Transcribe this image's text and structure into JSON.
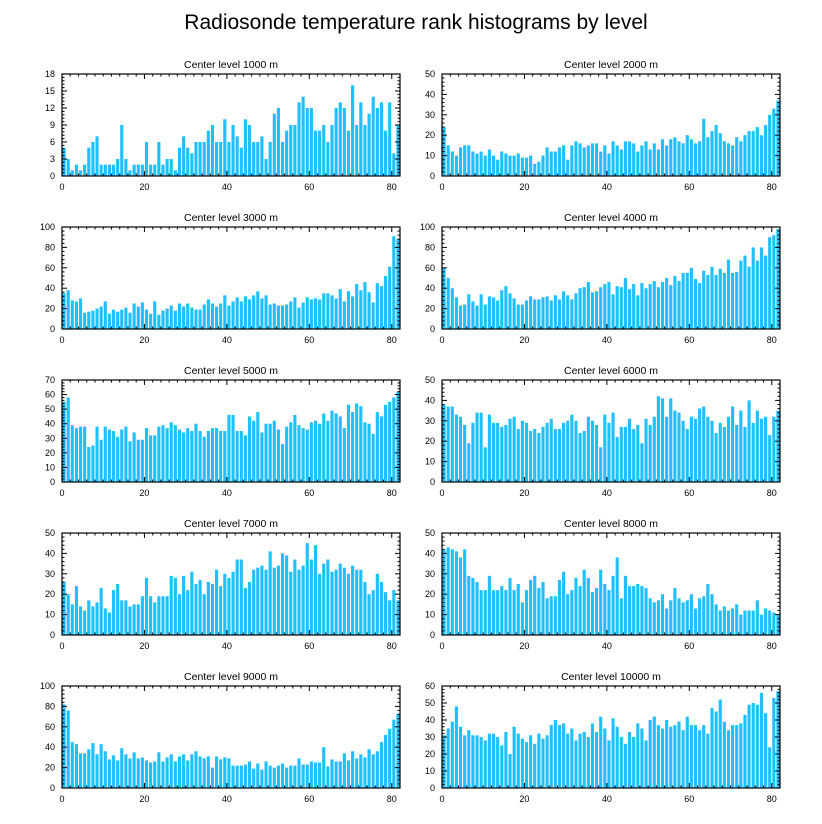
{
  "chart_data": {
    "title": "Radiosonde temperature rank histograms by level",
    "type": "bar",
    "bar_color": "#1ec0ff",
    "panels": [
      {
        "title": "Center level 1000 m",
        "xlim": [
          0,
          82
        ],
        "ylim": [
          0,
          18
        ],
        "xticks": [
          0,
          20,
          40,
          60,
          80
        ],
        "yticks": [
          0,
          3,
          6,
          9,
          12,
          15,
          18
        ],
        "values": [
          5,
          3,
          1,
          2,
          1,
          2,
          5,
          6,
          7,
          2,
          2,
          2,
          2,
          3,
          9,
          3,
          1,
          2,
          2,
          2,
          6,
          2,
          2,
          6,
          2,
          3,
          3,
          1,
          5,
          7,
          5,
          4,
          6,
          6,
          6,
          8,
          9,
          6,
          6,
          10,
          6,
          9,
          7,
          5,
          10,
          9,
          6,
          6,
          7,
          3,
          6,
          11,
          12,
          6,
          8,
          9,
          9,
          13,
          14,
          12,
          12,
          8,
          8,
          9,
          6,
          9,
          12,
          13,
          12,
          8,
          16,
          9,
          13,
          9,
          11,
          14,
          12,
          13,
          8,
          13,
          4,
          9
        ]
      },
      {
        "title": "Center level 2000 m",
        "xlim": [
          0,
          82
        ],
        "ylim": [
          0,
          50
        ],
        "xticks": [
          0,
          20,
          40,
          60,
          80
        ],
        "yticks": [
          0,
          10,
          20,
          30,
          40,
          50
        ],
        "values": [
          24,
          15,
          12,
          10,
          14,
          15,
          15,
          12,
          11,
          12,
          10,
          13,
          10,
          8,
          12,
          11,
          10,
          10,
          11,
          9,
          9,
          10,
          6,
          7,
          10,
          14,
          12,
          12,
          14,
          15,
          8,
          15,
          17,
          16,
          14,
          15,
          16,
          16,
          12,
          15,
          11,
          17,
          15,
          13,
          17,
          17,
          16,
          12,
          15,
          17,
          13,
          16,
          13,
          18,
          15,
          18,
          19,
          17,
          16,
          20,
          18,
          16,
          17,
          28,
          19,
          22,
          25,
          21,
          17,
          16,
          15,
          19,
          17,
          20,
          22,
          22,
          24,
          20,
          25,
          30,
          33,
          37
        ]
      },
      {
        "title": "Center level 3000 m",
        "xlim": [
          0,
          82
        ],
        "ylim": [
          0,
          100
        ],
        "xticks": [
          0,
          20,
          40,
          60,
          80
        ],
        "yticks": [
          0,
          20,
          40,
          60,
          80,
          100
        ],
        "values": [
          35,
          38,
          28,
          27,
          30,
          16,
          17,
          18,
          20,
          22,
          27,
          15,
          19,
          17,
          19,
          21,
          16,
          25,
          22,
          26,
          19,
          15,
          27,
          14,
          18,
          20,
          23,
          18,
          25,
          22,
          25,
          21,
          19,
          19,
          24,
          29,
          25,
          22,
          25,
          33,
          23,
          27,
          31,
          27,
          32,
          29,
          33,
          37,
          30,
          33,
          24,
          25,
          23,
          23,
          24,
          27,
          31,
          21,
          26,
          31,
          29,
          30,
          29,
          35,
          35,
          33,
          30,
          39,
          27,
          37,
          32,
          44,
          38,
          46,
          36,
          26,
          45,
          42,
          52,
          61,
          91,
          88
        ]
      },
      {
        "title": "Center level 4000 m",
        "xlim": [
          0,
          82
        ],
        "ylim": [
          0,
          100
        ],
        "xticks": [
          0,
          20,
          40,
          60,
          80
        ],
        "yticks": [
          0,
          20,
          40,
          60,
          80,
          100
        ],
        "values": [
          60,
          50,
          40,
          31,
          23,
          24,
          34,
          27,
          23,
          34,
          24,
          32,
          31,
          28,
          38,
          42,
          35,
          30,
          24,
          24,
          28,
          32,
          29,
          29,
          31,
          32,
          28,
          33,
          29,
          37,
          33,
          29,
          35,
          40,
          41,
          46,
          36,
          37,
          41,
          44,
          46,
          34,
          42,
          41,
          50,
          39,
          44,
          33,
          45,
          40,
          44,
          47,
          41,
          46,
          50,
          43,
          52,
          47,
          55,
          55,
          60,
          49,
          45,
          57,
          53,
          61,
          53,
          59,
          55,
          68,
          55,
          56,
          67,
          72,
          61,
          80,
          67,
          80,
          72,
          90,
          92,
          98
        ]
      },
      {
        "title": "Center level 5000 m",
        "xlim": [
          0,
          82
        ],
        "ylim": [
          0,
          70
        ],
        "xticks": [
          0,
          20,
          40,
          60,
          80
        ],
        "yticks": [
          0,
          10,
          20,
          30,
          40,
          50,
          60,
          70
        ],
        "values": [
          55,
          58,
          39,
          37,
          38,
          38,
          24,
          25,
          38,
          29,
          38,
          36,
          35,
          31,
          36,
          38,
          28,
          34,
          29,
          29,
          37,
          32,
          32,
          38,
          39,
          37,
          41,
          39,
          36,
          34,
          37,
          35,
          40,
          35,
          31,
          35,
          37,
          37,
          35,
          35,
          46,
          46,
          35,
          35,
          32,
          45,
          42,
          48,
          34,
          40,
          40,
          42,
          36,
          26,
          38,
          41,
          46,
          39,
          37,
          36,
          41,
          42,
          40,
          47,
          42,
          49,
          47,
          45,
          37,
          53,
          48,
          54,
          52,
          41,
          40,
          33,
          48,
          45,
          53,
          55,
          58,
          62
        ]
      },
      {
        "title": "Center level 6000 m",
        "xlim": [
          0,
          82
        ],
        "ylim": [
          0,
          50
        ],
        "xticks": [
          0,
          20,
          40,
          60,
          80
        ],
        "yticks": [
          0,
          10,
          20,
          30,
          40,
          50
        ],
        "values": [
          38,
          37,
          37,
          33,
          32,
          28,
          19,
          29,
          34,
          34,
          17,
          33,
          29,
          29,
          27,
          28,
          31,
          32,
          26,
          30,
          29,
          25,
          26,
          24,
          27,
          29,
          31,
          26,
          26,
          29,
          30,
          33,
          30,
          24,
          25,
          32,
          30,
          28,
          17,
          33,
          29,
          34,
          22,
          27,
          27,
          31,
          26,
          28,
          19,
          31,
          28,
          32,
          42,
          41,
          32,
          41,
          35,
          34,
          30,
          26,
          32,
          31,
          36,
          37,
          32,
          30,
          24,
          29,
          27,
          32,
          37,
          28,
          35,
          27,
          40,
          29,
          35,
          31,
          32,
          23,
          32,
          35
        ]
      },
      {
        "title": "Center level 7000 m",
        "xlim": [
          0,
          82
        ],
        "ylim": [
          0,
          50
        ],
        "xticks": [
          0,
          20,
          40,
          60,
          80
        ],
        "yticks": [
          0,
          10,
          20,
          30,
          40,
          50
        ],
        "values": [
          26,
          20,
          15,
          24,
          14,
          12,
          17,
          14,
          16,
          23,
          13,
          11,
          22,
          25,
          17,
          17,
          14,
          15,
          15,
          19,
          28,
          19,
          16,
          19,
          19,
          19,
          29,
          28,
          20,
          29,
          22,
          31,
          25,
          27,
          20,
          26,
          25,
          32,
          24,
          30,
          28,
          31,
          37,
          37,
          23,
          26,
          32,
          33,
          34,
          32,
          41,
          33,
          34,
          40,
          39,
          31,
          37,
          32,
          34,
          45,
          37,
          44,
          30,
          35,
          37,
          31,
          32,
          35,
          33,
          30,
          34,
          32,
          32,
          26,
          20,
          22,
          30,
          26,
          21,
          17,
          22,
          17
        ]
      },
      {
        "title": "Center level 8000 m",
        "xlim": [
          0,
          82
        ],
        "ylim": [
          0,
          50
        ],
        "xticks": [
          0,
          20,
          40,
          60,
          80
        ],
        "yticks": [
          0,
          10,
          20,
          30,
          40,
          50
        ],
        "values": [
          42,
          43,
          42,
          41,
          38,
          42,
          29,
          28,
          26,
          22,
          22,
          29,
          22,
          22,
          24,
          22,
          28,
          22,
          25,
          16,
          22,
          27,
          29,
          23,
          26,
          18,
          19,
          19,
          27,
          31,
          20,
          22,
          28,
          24,
          32,
          28,
          21,
          23,
          32,
          25,
          22,
          29,
          38,
          18,
          29,
          24,
          24,
          25,
          24,
          23,
          18,
          16,
          17,
          20,
          13,
          17,
          23,
          18,
          16,
          17,
          20,
          13,
          18,
          19,
          25,
          20,
          15,
          12,
          14,
          12,
          13,
          15,
          10,
          12,
          12,
          12,
          17,
          10,
          13,
          12,
          11,
          10
        ]
      },
      {
        "title": "Center level 9000 m",
        "xlim": [
          0,
          82
        ],
        "ylim": [
          0,
          100
        ],
        "xticks": [
          0,
          20,
          40,
          60,
          80
        ],
        "yticks": [
          0,
          20,
          40,
          60,
          80,
          100
        ],
        "values": [
          82,
          76,
          45,
          43,
          34,
          34,
          38,
          44,
          33,
          43,
          36,
          28,
          32,
          27,
          39,
          33,
          29,
          35,
          29,
          30,
          27,
          25,
          26,
          35,
          26,
          30,
          33,
          26,
          31,
          33,
          27,
          33,
          36,
          31,
          29,
          31,
          20,
          31,
          28,
          30,
          29,
          22,
          22,
          22,
          23,
          26,
          19,
          24,
          18,
          26,
          22,
          20,
          22,
          24,
          20,
          22,
          22,
          29,
          23,
          23,
          26,
          25,
          25,
          40,
          21,
          28,
          26,
          26,
          34,
          27,
          36,
          29,
          33,
          30,
          38,
          33,
          36,
          45,
          52,
          58,
          67,
          73
        ]
      },
      {
        "title": "Center level 10000 m",
        "xlim": [
          0,
          82
        ],
        "ylim": [
          0,
          60
        ],
        "xticks": [
          0,
          20,
          40,
          60,
          80
        ],
        "yticks": [
          0,
          10,
          20,
          30,
          40,
          50,
          60
        ],
        "values": [
          31,
          35,
          39,
          48,
          36,
          31,
          34,
          31,
          31,
          30,
          28,
          32,
          32,
          30,
          25,
          33,
          20,
          36,
          32,
          29,
          27,
          31,
          26,
          32,
          29,
          31,
          37,
          40,
          37,
          38,
          32,
          35,
          28,
          32,
          33,
          30,
          38,
          33,
          42,
          35,
          28,
          41,
          36,
          30,
          26,
          33,
          30,
          38,
          35,
          28,
          40,
          42,
          37,
          35,
          40,
          36,
          37,
          39,
          34,
          42,
          37,
          37,
          34,
          37,
          32,
          47,
          45,
          52,
          39,
          34,
          37,
          37,
          38,
          43,
          49,
          50,
          49,
          56,
          44,
          24,
          53,
          57
        ]
      }
    ]
  }
}
